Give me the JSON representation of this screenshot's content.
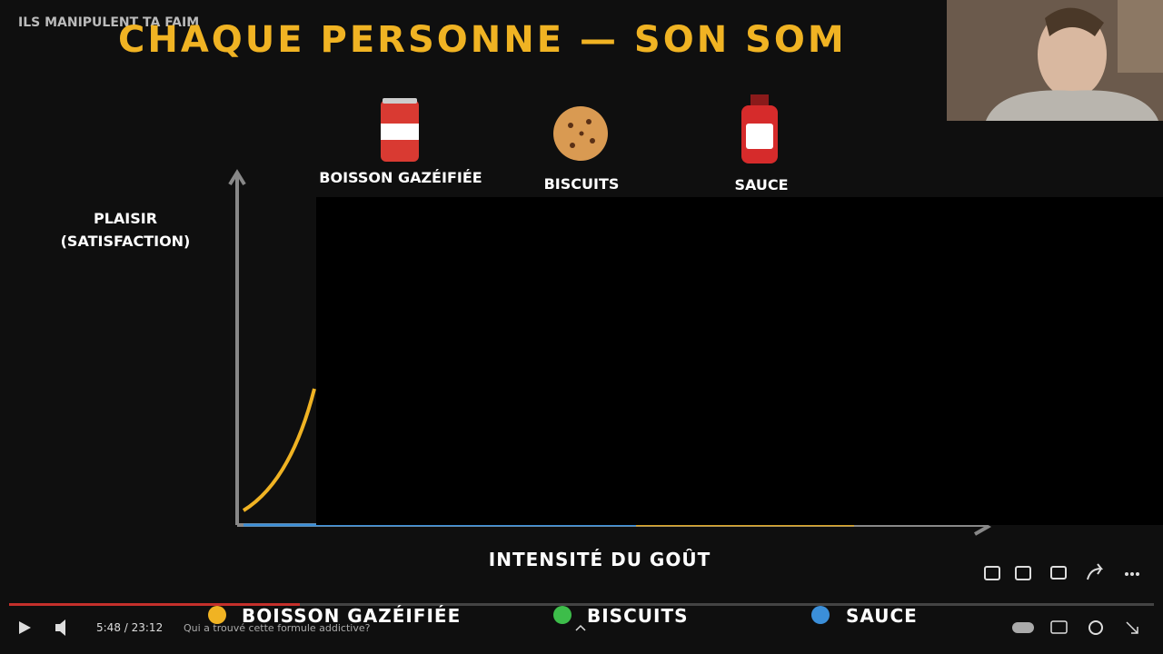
{
  "video": {
    "title": "ILS MANIPULENT TA FAIM"
  },
  "slide": {
    "title": "CHAQUE PERSONNE — SON SOM",
    "icons": [
      "BOISSON GAZÉIFIÉE",
      "BISCUITS",
      "SAUCE"
    ],
    "y_axis_label": [
      "PLAISIR",
      "(SATISFACTION)"
    ],
    "x_axis_label": "INTENSITÉ DU GOÛT",
    "legend": [
      "BOISSON GAZÉIFIÉE",
      "BISCUITS",
      "SAUCE"
    ]
  },
  "player": {
    "time": "5:48 / 23:12",
    "chapter": "Qui a trouvé cette formule addictive?"
  }
}
